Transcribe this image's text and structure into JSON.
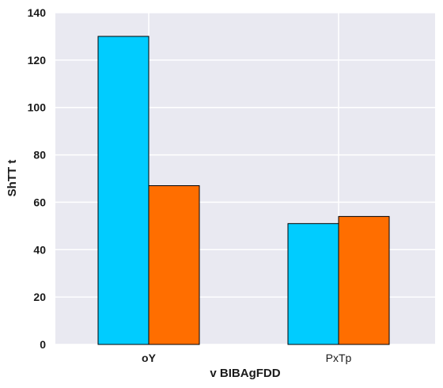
{
  "chart_data": {
    "type": "bar",
    "categories": [
      "oY",
      "PxTp"
    ],
    "category_bold": [
      true,
      false
    ],
    "series": [
      {
        "values": [
          130,
          67
        ],
        "color": "#00ccff"
      },
      {
        "values": [
          51,
          54
        ],
        "color": "#ff6e00"
      }
    ],
    "series_by_category": true,
    "xlabel": "v BIBAgFDD",
    "ylabel": "ShTT t",
    "ylim": [
      0,
      140
    ],
    "yticks": [
      0,
      20,
      40,
      60,
      80,
      100,
      120,
      140
    ],
    "grid": true,
    "background": "#e9e9f1",
    "grid_color": "#ffffff",
    "bar_edge_color": "#000000"
  }
}
